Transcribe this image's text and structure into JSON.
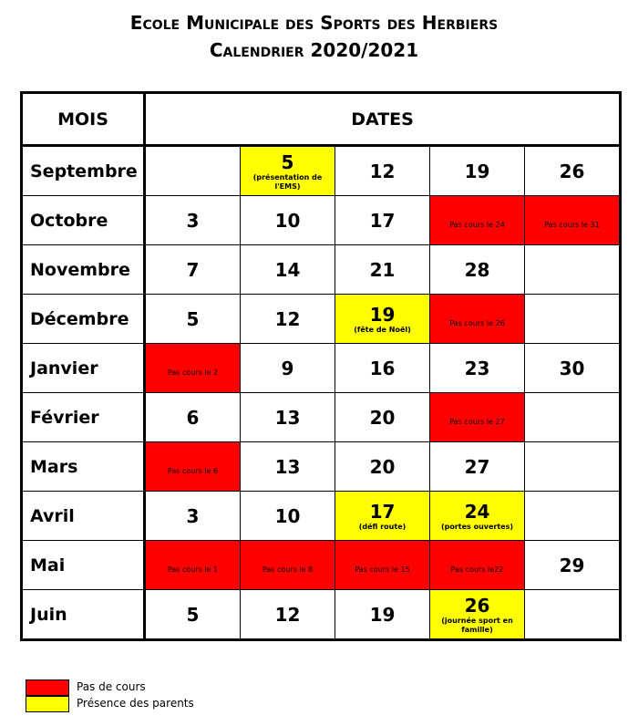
{
  "header": {
    "title": "Ecole Municipale des Sports des Herbiers",
    "subtitle": "Calendrier 2020/2021"
  },
  "table": {
    "columns": [
      "MOIS",
      "DATES"
    ],
    "rows": [
      {
        "month": "Septembre",
        "cells": [
          null,
          {
            "text": 5,
            "note": "(présentation de l'EMS)",
            "color": "#ffff00"
          },
          {
            "text": 12
          },
          {
            "text": 19
          },
          {
            "text": 26
          }
        ]
      },
      {
        "month": "Octobre",
        "cells": [
          {
            "text": 3
          },
          {
            "text": 10
          },
          {
            "text": 17
          },
          {
            "text": "Pas cours le 24",
            "color": "#ff0000"
          },
          {
            "text": "Pas cours le 31",
            "color": "#ff0000"
          }
        ]
      },
      {
        "month": "Novembre",
        "cells": [
          {
            "text": 7
          },
          {
            "text": 14
          },
          {
            "text": 21
          },
          {
            "text": 28
          },
          null
        ]
      },
      {
        "month": "Décembre",
        "cells": [
          {
            "text": 5
          },
          {
            "text": 12
          },
          {
            "text": 19,
            "note": "(fête de Noël)",
            "color": "#ffff00"
          },
          {
            "text": "Pas cours le 26",
            "color": "#ff0000"
          },
          null
        ]
      },
      {
        "month": "Janvier",
        "cells": [
          {
            "text": "Pas cours le 2",
            "color": "#ff0000"
          },
          {
            "text": 9
          },
          {
            "text": 16
          },
          {
            "text": 23
          },
          {
            "text": 30
          }
        ]
      },
      {
        "month": "Février",
        "cells": [
          {
            "text": 6
          },
          {
            "text": 13
          },
          {
            "text": 20
          },
          {
            "text": "Pas cours le 27",
            "color": "#ff0000"
          },
          null
        ]
      },
      {
        "month": "Mars",
        "cells": [
          {
            "text": "Pas cours le 6",
            "color": "#ff0000"
          },
          {
            "text": 13
          },
          {
            "text": 20
          },
          {
            "text": 27
          },
          null
        ]
      },
      {
        "month": "Avril",
        "cells": [
          {
            "text": 3
          },
          {
            "text": 10
          },
          {
            "text": 17,
            "note": "(défi route)",
            "color": "#ffff00"
          },
          {
            "text": 24,
            "note": "(portes ouvertes)",
            "color": "#ffff00"
          },
          null
        ]
      },
      {
        "month": "Mai",
        "cells": [
          {
            "text": "Pas cours le 1",
            "color": "#ff0000"
          },
          {
            "text": "Pas cours le 8",
            "color": "#ff0000"
          },
          {
            "text": "Pas cours le 15",
            "color": "#ff0000"
          },
          {
            "text": "Pas cours le22",
            "color": "#ff0000"
          },
          {
            "text": 29
          }
        ]
      },
      {
        "month": "Juin",
        "cells": [
          {
            "text": 5
          },
          {
            "text": 12
          },
          {
            "text": 19
          },
          {
            "text": 26,
            "note": "(journée sport en famille)",
            "color": "#ffff00"
          },
          null
        ]
      }
    ]
  },
  "legend": [
    {
      "label": "Pas de cours",
      "color": "#ff0000"
    },
    {
      "label": "Présence des parents",
      "color": "#ffff00"
    }
  ]
}
